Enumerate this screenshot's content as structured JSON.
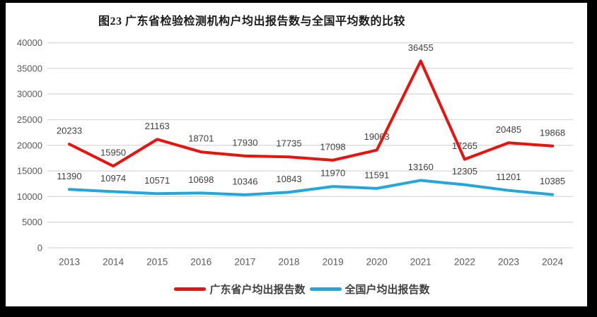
{
  "title": "图23  广东省检验检测机构户均出报告数与全国平均数的比较",
  "chart_data": {
    "type": "line",
    "categories": [
      "2013",
      "2014",
      "2015",
      "2016",
      "2017",
      "2018",
      "2019",
      "2020",
      "2021",
      "2022",
      "2023",
      "2024"
    ],
    "series": [
      {
        "name": "广东省户均出报告数",
        "color": "#e9120c",
        "values": [
          20233,
          15950,
          21163,
          18701,
          17930,
          17735,
          17098,
          19063,
          36455,
          17265,
          20485,
          19868
        ]
      },
      {
        "name": "全国户均出报告数",
        "color": "#22a6de",
        "values": [
          11390,
          10974,
          10571,
          10698,
          10346,
          10843,
          11970,
          11591,
          13160,
          12305,
          11201,
          10385
        ]
      }
    ],
    "ylim": [
      0,
      40000
    ],
    "ytick_step": 5000,
    "yticks": [
      0,
      5000,
      10000,
      15000,
      20000,
      25000,
      30000,
      35000,
      40000
    ],
    "grid": true,
    "data_labels": true,
    "legend_position": "bottom"
  },
  "colors": {
    "frame_bg": "#000000",
    "chart_bg": "#ffffff",
    "gridline": "#d9d9d9",
    "axis_text": "#595959",
    "data_label_text": "#404040",
    "title_text": "#1a1a1a",
    "legend_text": "#404040"
  }
}
